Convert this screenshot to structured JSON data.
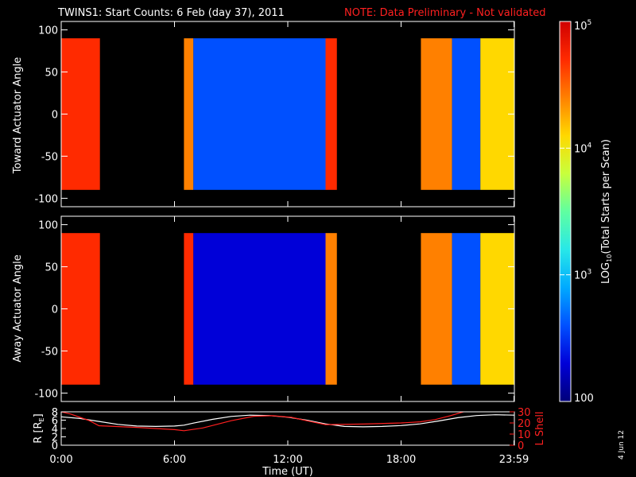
{
  "title": {
    "main": "TWINS1: Start Counts:  6 Feb (day  37), 2011",
    "note": "NOTE: Data Preliminary - Not validated"
  },
  "stamp": "4 Jun 12",
  "colors": {
    "scale": [
      "#00007a",
      "#0000d8",
      "#0050ff",
      "#00aaff",
      "#28e8e8",
      "#60ffa0",
      "#c8ff3c",
      "#ffd800",
      "#ff8000",
      "#ff2a00",
      "#d00000"
    ],
    "no_data": "#000000",
    "text": "#ffffff",
    "lshell": "#ff2020",
    "radius": "#ffffff"
  },
  "chart_data": [
    {
      "type": "heatmap",
      "panel": "toward",
      "ylabel": "Toward Actuator Angle",
      "ylim": [
        -110,
        110
      ],
      "yticks": [
        100,
        50,
        0,
        -50,
        -100
      ],
      "ytick_labels": [
        "100",
        "50",
        "0",
        "-50",
        "-100"
      ],
      "xlim": [
        0,
        24
      ],
      "data_angle_range": [
        -90,
        90
      ],
      "coverage_hours": [
        [
          0.0,
          2.05
        ],
        [
          6.5,
          14.6
        ],
        [
          19.05,
          24.0
        ]
      ],
      "description_columns": [
        {
          "t": [
            0.0,
            2.05
          ],
          "log_counts": 4.6
        },
        {
          "t": [
            6.5,
            7.0
          ],
          "log_counts": 4.4
        },
        {
          "t": [
            7.0,
            14.0
          ],
          "log_counts": 2.6
        },
        {
          "t": [
            14.0,
            14.6
          ],
          "log_counts": 4.5
        },
        {
          "t": [
            19.05,
            20.7
          ],
          "log_counts": 4.4
        },
        {
          "t": [
            20.7,
            22.2
          ],
          "log_counts": 2.8
        },
        {
          "t": [
            22.2,
            24.0
          ],
          "log_counts": 4.1
        }
      ]
    },
    {
      "type": "heatmap",
      "panel": "away",
      "ylabel": "Away Actuator Angle",
      "ylim": [
        -110,
        110
      ],
      "yticks": [
        100,
        50,
        0,
        -50,
        -100
      ],
      "ytick_labels": [
        "100",
        "50",
        "0",
        "-50",
        "-100"
      ],
      "xlim": [
        0,
        24
      ],
      "data_angle_range": [
        -90,
        90
      ],
      "coverage_hours": [
        [
          0.0,
          2.05
        ],
        [
          6.5,
          14.6
        ],
        [
          19.05,
          24.0
        ]
      ],
      "description_columns": [
        {
          "t": [
            0.0,
            2.05
          ],
          "log_counts": 4.5
        },
        {
          "t": [
            6.5,
            7.0
          ],
          "log_counts": 4.5
        },
        {
          "t": [
            7.0,
            14.0
          ],
          "log_counts": 2.5
        },
        {
          "t": [
            14.0,
            14.6
          ],
          "log_counts": 4.4
        },
        {
          "t": [
            19.05,
            20.7
          ],
          "log_counts": 4.3
        },
        {
          "t": [
            20.7,
            22.2
          ],
          "log_counts": 2.7
        },
        {
          "t": [
            22.2,
            24.0
          ],
          "log_counts": 4.1
        }
      ]
    },
    {
      "type": "line",
      "panel": "ephemeris",
      "xlabel": "Time (UT)",
      "xlim": [
        0,
        24
      ],
      "xticks": [
        0,
        6,
        12,
        18,
        23.98
      ],
      "xtick_labels": [
        "0:00",
        "6:00",
        "12:00",
        "18:00",
        "23:59"
      ],
      "left_axis": {
        "label": "R [R",
        "label_sub": "E",
        "label_end": "]",
        "ylim": [
          0,
          8
        ],
        "yticks": [
          0,
          2,
          4,
          6,
          8
        ],
        "ytick_labels": [
          "0",
          "2",
          "4",
          "6",
          "8"
        ]
      },
      "right_axis": {
        "label": "L Shell",
        "ylim": [
          0,
          30
        ],
        "yticks": [
          0,
          10,
          20,
          30
        ],
        "ytick_labels": [
          "0",
          "10",
          "20",
          "30"
        ]
      },
      "series": [
        {
          "axis": "left",
          "x": [
            0,
            1,
            2,
            3,
            4,
            5,
            6,
            6.5,
            7,
            8,
            9,
            10,
            11,
            12,
            13,
            14,
            15,
            16,
            17,
            18,
            19,
            20,
            21,
            22,
            23,
            24
          ],
          "y": [
            6.8,
            6.4,
            5.7,
            5.0,
            4.6,
            4.5,
            4.6,
            4.8,
            5.3,
            6.2,
            6.9,
            7.2,
            7.1,
            6.7,
            6.0,
            5.1,
            4.5,
            4.4,
            4.5,
            4.7,
            5.1,
            5.8,
            6.6,
            7.1,
            7.3,
            7.2
          ]
        },
        {
          "axis": "right",
          "x": [
            0,
            0.5,
            1.0,
            1.5,
            2.0,
            4.0,
            6.0,
            6.5,
            7.5,
            9.0,
            10.2,
            11.2,
            12.2,
            13.0,
            14.0,
            16.0,
            18.0,
            19.0,
            19.8,
            20.6,
            21.3,
            21.6
          ],
          "y": [
            30,
            28,
            25,
            22,
            17.5,
            16,
            14,
            13,
            15.5,
            22,
            26,
            26.5,
            25,
            22,
            18.5,
            19,
            20,
            21,
            23,
            26.5,
            30,
            31
          ]
        }
      ]
    },
    {
      "type": "heatmap",
      "panel": "colorbar",
      "label_prefix": "LOG",
      "label_sub": "10",
      "label_suffix": "(Total Starts per Scan)",
      "range_log10": [
        2,
        5
      ],
      "ticks": [
        {
          "v": 5,
          "base": "10",
          "exp": "5"
        },
        {
          "v": 4,
          "base": "10",
          "exp": "4"
        },
        {
          "v": 3,
          "base": "10",
          "exp": "3"
        },
        {
          "v": 2,
          "base": "100",
          "exp": ""
        }
      ]
    }
  ]
}
